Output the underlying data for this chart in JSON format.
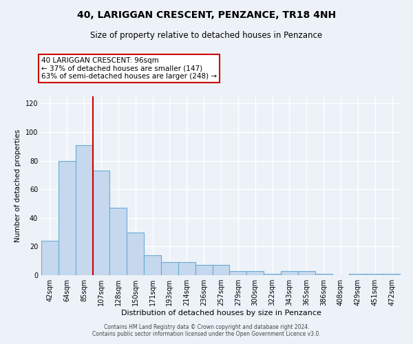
{
  "title": "40, LARIGGAN CRESCENT, PENZANCE, TR18 4NH",
  "subtitle": "Size of property relative to detached houses in Penzance",
  "xlabel": "Distribution of detached houses by size in Penzance",
  "ylabel": "Number of detached properties",
  "bar_labels": [
    "42sqm",
    "64sqm",
    "85sqm",
    "107sqm",
    "128sqm",
    "150sqm",
    "171sqm",
    "193sqm",
    "214sqm",
    "236sqm",
    "257sqm",
    "279sqm",
    "300sqm",
    "322sqm",
    "343sqm",
    "365sqm",
    "386sqm",
    "408sqm",
    "429sqm",
    "451sqm",
    "472sqm"
  ],
  "bar_values": [
    24,
    80,
    91,
    73,
    47,
    30,
    14,
    9,
    9,
    7,
    7,
    3,
    3,
    1,
    3,
    3,
    1,
    0,
    1,
    1,
    1
  ],
  "bar_color": "#c5d8ed",
  "bar_edge_color": "#6aaad4",
  "vline_color": "#cc0000",
  "annotation_box_color": "#cc0000",
  "ylim": [
    0,
    125
  ],
  "yticks": [
    0,
    20,
    40,
    60,
    80,
    100,
    120
  ],
  "background_color": "#edf2f9",
  "grid_color": "#ffffff",
  "footer_line1": "Contains HM Land Registry data © Crown copyright and database right 2024.",
  "footer_line2": "Contains public sector information licensed under the Open Government Licence v3.0.",
  "pct_smaller": 37,
  "count_smaller": 147,
  "pct_larger_semi": 63,
  "count_larger_semi": 248
}
